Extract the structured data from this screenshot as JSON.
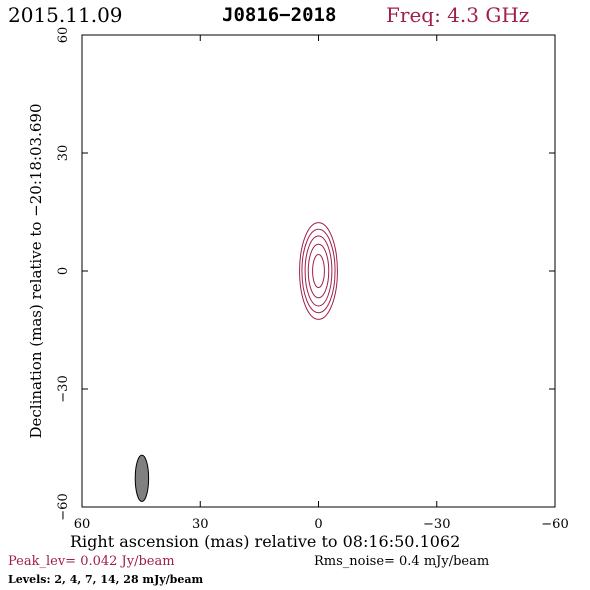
{
  "header": {
    "date": "2015.11.09",
    "source": "J0816−2018",
    "freq": "Freq: 4.3 GHz",
    "freq_color": "#a0204a"
  },
  "footer": {
    "peak": "Peak_lev=  0.042 Jy/beam",
    "rms": "Rms_noise=  0.4 mJy/beam",
    "levels": "Levels:   2,   4,   7,  14,  28 mJy/beam"
  },
  "chart_data": {
    "type": "contour",
    "xlabel": "Right ascension (mas) relative to 08:16:50.1062",
    "ylabel": "Declination (mas) relative to −20:18:03.690",
    "xlim": [
      60,
      -60
    ],
    "ylim": [
      -60,
      60
    ],
    "x_ticks": [
      60,
      30,
      0,
      -30,
      -60
    ],
    "y_ticks": [
      -60,
      -30,
      0,
      30,
      60
    ],
    "x_tick_labels": [
      "60",
      "30",
      "0",
      "−30",
      "−60"
    ],
    "y_tick_labels": [
      "−60",
      "−30",
      "0",
      "30",
      "60"
    ],
    "contour_color": "#a0204a",
    "contour_levels_mJy": [
      2,
      4,
      7,
      14,
      28
    ],
    "contours": [
      {
        "level": 2,
        "x": 0,
        "y": 0,
        "semi_major": 12.3,
        "semi_minor": 4.8
      },
      {
        "level": 4,
        "x": 0,
        "y": 0,
        "semi_major": 10.6,
        "semi_minor": 4.2
      },
      {
        "level": 7,
        "x": 0,
        "y": 0,
        "semi_major": 8.9,
        "semi_minor": 3.4
      },
      {
        "level": 14,
        "x": 0,
        "y": 0,
        "semi_major": 6.8,
        "semi_minor": 2.6
      },
      {
        "level": 28,
        "x": 0,
        "y": 0,
        "semi_major": 4.2,
        "semi_minor": 1.5
      }
    ],
    "beam": {
      "x": 44.8,
      "y": -52.7,
      "semi_major": 5.9,
      "semi_minor": 1.7,
      "fill": "#808080"
    }
  }
}
